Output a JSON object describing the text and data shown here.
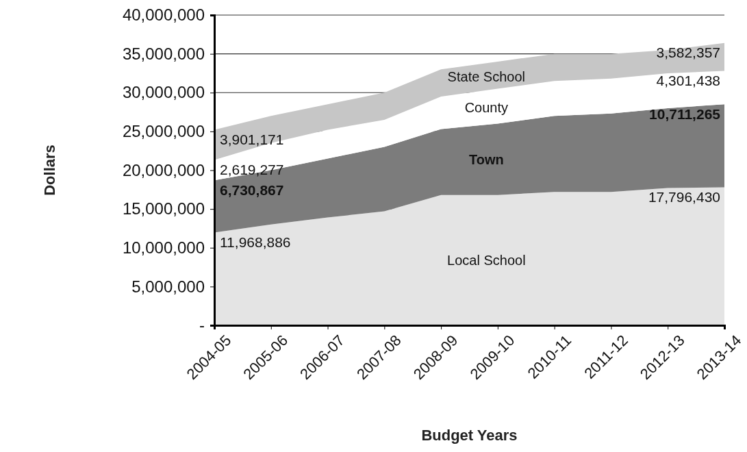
{
  "chart_data": {
    "type": "area",
    "stacked": true,
    "xlabel": "Budget Years",
    "ylabel": "Dollars",
    "categories": [
      "2004-05",
      "2005-06",
      "2006-07",
      "2007-08",
      "2008-09",
      "2009-10",
      "2010-11",
      "2011-12",
      "2012-13",
      "2013-14"
    ],
    "ylim": [
      0,
      40000000
    ],
    "yticks": [
      {
        "value": 0,
        "label": "-"
      },
      {
        "value": 5000000,
        "label": "5,000,000"
      },
      {
        "value": 10000000,
        "label": "10,000,000"
      },
      {
        "value": 15000000,
        "label": "15,000,000"
      },
      {
        "value": 20000000,
        "label": "20,000,000"
      },
      {
        "value": 25000000,
        "label": "25,000,000"
      },
      {
        "value": 30000000,
        "label": "30,000,000"
      },
      {
        "value": 35000000,
        "label": "35,000,000"
      },
      {
        "value": 40000000,
        "label": "40,000,000"
      }
    ],
    "grid": "y",
    "series": [
      {
        "name": "Local School",
        "color": "#e4e4e4",
        "values": [
          11968886,
          13000000,
          13900000,
          14700000,
          16800000,
          16800000,
          17200000,
          17200000,
          17700000,
          17796430
        ],
        "value_labels": [
          "11,968,886",
          null,
          null,
          null,
          null,
          null,
          null,
          null,
          null,
          "17,796,430"
        ]
      },
      {
        "name": "Town",
        "color": "#7c7c7c",
        "values": [
          6730867,
          7000000,
          7600000,
          8300000,
          8500000,
          9200000,
          9800000,
          10100000,
          10300000,
          10711265
        ],
        "value_labels": [
          "6,730,867",
          null,
          null,
          null,
          null,
          null,
          null,
          null,
          null,
          "10,711,265"
        ]
      },
      {
        "name": "County",
        "color": "#ffffff",
        "values": [
          2619277,
          3500000,
          3700000,
          3500000,
          4200000,
          4500000,
          4500000,
          4500000,
          4500000,
          4301438
        ],
        "value_labels": [
          "2,619,277",
          null,
          null,
          null,
          null,
          null,
          null,
          null,
          null,
          "4,301,438"
        ]
      },
      {
        "name": "State School",
        "color": "#c6c6c6",
        "values": [
          3901171,
          3500000,
          3300000,
          3500000,
          3500000,
          3500000,
          3500000,
          3200000,
          3000000,
          3582357
        ],
        "value_labels": [
          "3,901,171",
          null,
          null,
          null,
          null,
          null,
          null,
          null,
          null,
          "3,582,357"
        ]
      }
    ]
  }
}
